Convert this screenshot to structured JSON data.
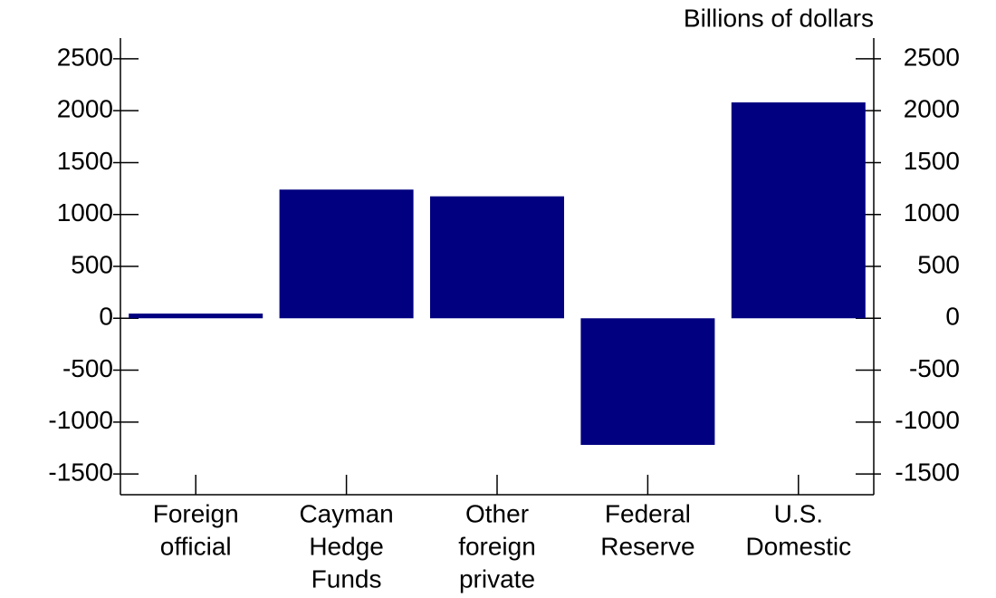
{
  "chart_data": {
    "type": "bar",
    "unit_label": "Billions of dollars",
    "categories": [
      [
        "Foreign",
        "official"
      ],
      [
        "Cayman",
        "Hedge",
        "Funds"
      ],
      [
        "Other",
        "foreign",
        "private"
      ],
      [
        "Federal",
        "Reserve"
      ],
      [
        "U.S.",
        "Domestic"
      ]
    ],
    "values": [
      45,
      1240,
      1175,
      -1220,
      2080
    ],
    "color": "#000080",
    "ylim": [
      -1700,
      2700
    ],
    "yticks": [
      -1500,
      -1000,
      -500,
      0,
      500,
      1000,
      1500,
      2000,
      2500
    ],
    "right_axis": true
  }
}
